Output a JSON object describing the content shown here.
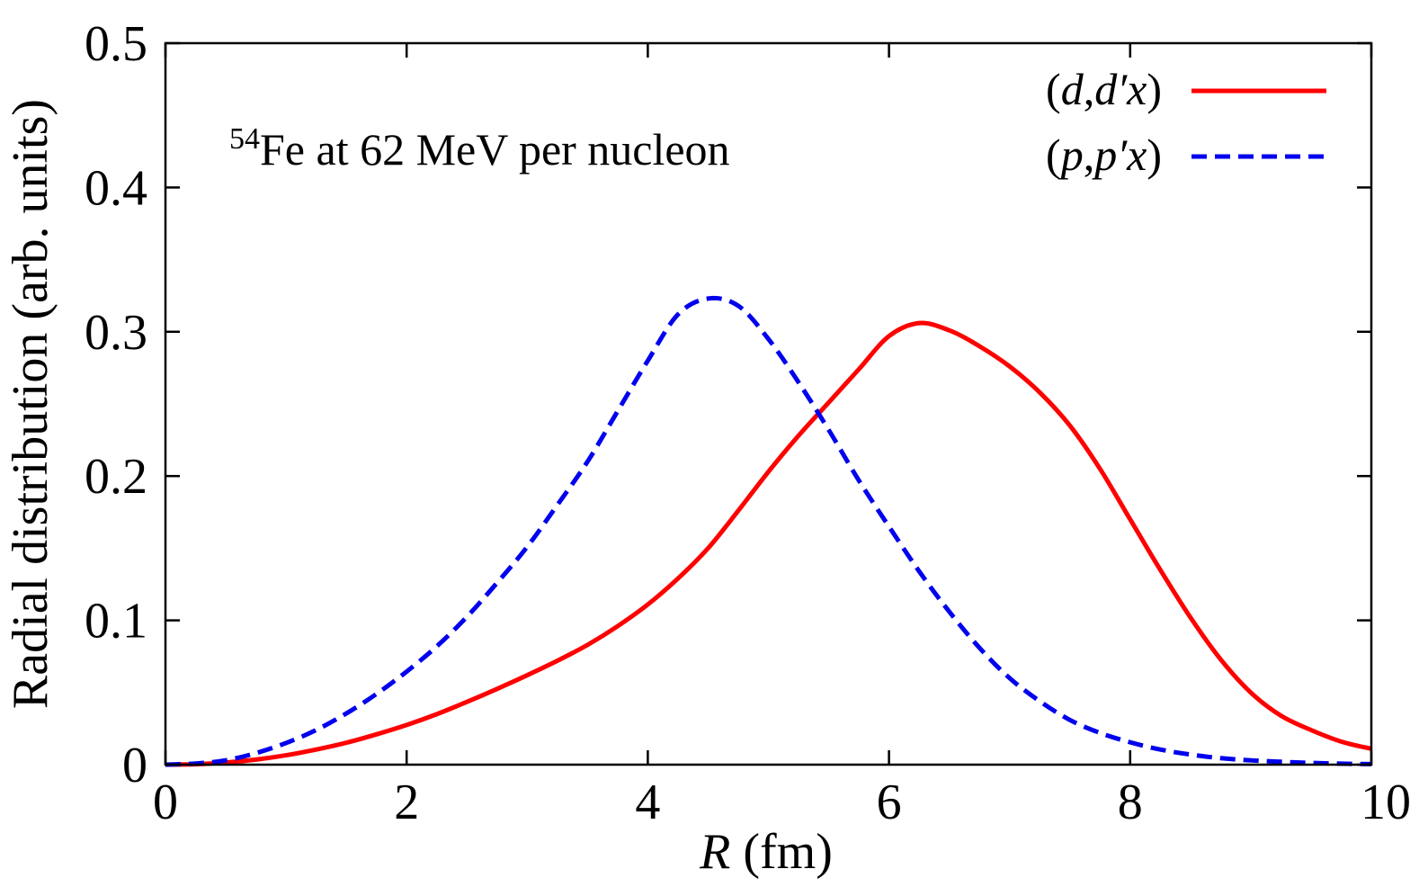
{
  "chart_data": {
    "type": "line",
    "xlabel_italic": "R",
    "xlabel_rest": " (fm)",
    "ylabel": "Radial distribution (arb. units)",
    "xlim": [
      0,
      10
    ],
    "ylim": [
      0,
      0.5
    ],
    "x_ticks": [
      0,
      2,
      4,
      6,
      8,
      10
    ],
    "x_tick_labels": [
      "0",
      "2",
      "4",
      "6",
      "8",
      "10"
    ],
    "y_ticks": [
      0,
      0.1,
      0.2,
      0.3,
      0.4,
      0.5
    ],
    "y_tick_labels": [
      "0",
      "0.1",
      "0.2",
      "0.3",
      "0.4",
      "0.5"
    ],
    "grid": false,
    "legend_position": "top-right",
    "annotation": {
      "superscript": "54",
      "text": "Fe at 62 MeV per nucleon"
    },
    "x": [
      0,
      0.25,
      0.5,
      0.75,
      1.0,
      1.25,
      1.5,
      1.75,
      2.0,
      2.25,
      2.5,
      2.75,
      3.0,
      3.25,
      3.5,
      3.75,
      4.0,
      4.25,
      4.5,
      4.75,
      5.0,
      5.25,
      5.5,
      5.75,
      6.0,
      6.25,
      6.5,
      6.75,
      7.0,
      7.25,
      7.5,
      7.75,
      8.0,
      8.25,
      8.5,
      8.75,
      9.0,
      9.25,
      9.5,
      9.75,
      10.0
    ],
    "series": [
      {
        "name": "(d,d′x)",
        "name_parts": [
          {
            "text": "(",
            "italic": false
          },
          {
            "text": "d",
            "italic": true
          },
          {
            "text": ",",
            "italic": false
          },
          {
            "text": "d′x",
            "italic": true
          },
          {
            "text": ")",
            "italic": false
          }
        ],
        "color": "#ff0000",
        "dash": "solid",
        "values": [
          0.0,
          0.0003,
          0.0015,
          0.0035,
          0.0065,
          0.0105,
          0.0152,
          0.021,
          0.0275,
          0.035,
          0.0435,
          0.0525,
          0.062,
          0.072,
          0.083,
          0.096,
          0.111,
          0.129,
          0.15,
          0.176,
          0.203,
          0.228,
          0.251,
          0.274,
          0.297,
          0.306,
          0.301,
          0.29,
          0.276,
          0.258,
          0.235,
          0.205,
          0.17,
          0.135,
          0.102,
          0.073,
          0.05,
          0.034,
          0.024,
          0.016,
          0.011
        ]
      },
      {
        "name": "(p,p′x)",
        "name_parts": [
          {
            "text": "(",
            "italic": false
          },
          {
            "text": "p",
            "italic": true
          },
          {
            "text": ",",
            "italic": false
          },
          {
            "text": "p′x",
            "italic": true
          },
          {
            "text": ")",
            "italic": false
          }
        ],
        "color": "#0000ee",
        "dash": "dashed",
        "values": [
          0.0,
          0.0008,
          0.003,
          0.008,
          0.015,
          0.024,
          0.0355,
          0.049,
          0.0645,
          0.082,
          0.1025,
          0.126,
          0.151,
          0.18,
          0.21,
          0.245,
          0.28,
          0.312,
          0.323,
          0.318,
          0.295,
          0.265,
          0.232,
          0.197,
          0.165,
          0.134,
          0.106,
          0.081,
          0.06,
          0.044,
          0.031,
          0.022,
          0.0155,
          0.0105,
          0.007,
          0.0045,
          0.003,
          0.002,
          0.0012,
          0.0007,
          0.0004
        ]
      }
    ]
  }
}
